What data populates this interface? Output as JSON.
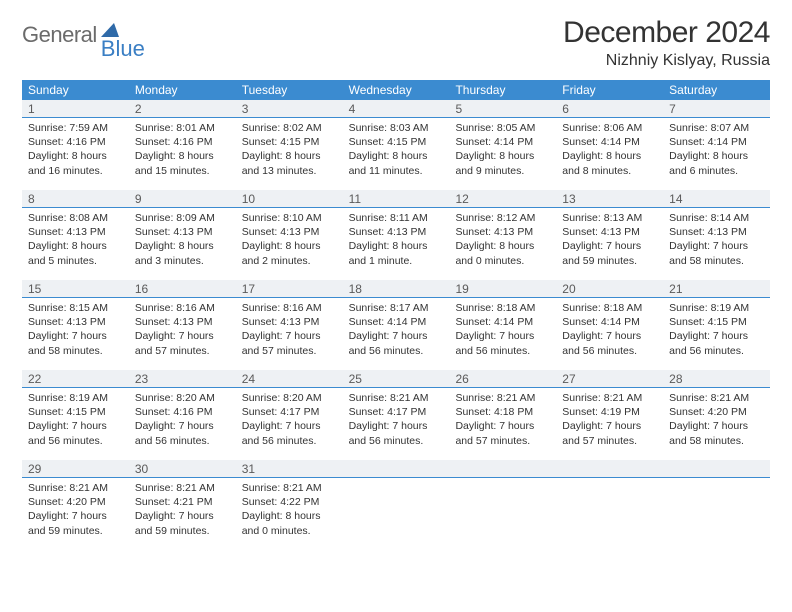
{
  "brand": {
    "part1": "General",
    "part2": "Blue"
  },
  "title": "December 2024",
  "location": "Nizhniy Kislyay, Russia",
  "daynames": [
    "Sunday",
    "Monday",
    "Tuesday",
    "Wednesday",
    "Thursday",
    "Friday",
    "Saturday"
  ],
  "colors": {
    "header_bg": "#3b8bd0",
    "daynum_bg": "#eef1f4",
    "rule": "#3b8bd0",
    "logo_gray": "#6b6b6b",
    "logo_blue": "#3b7fc4"
  },
  "weeks": [
    [
      {
        "n": "1",
        "sr": "Sunrise: 7:59 AM",
        "ss": "Sunset: 4:16 PM",
        "dl": "Daylight: 8 hours and 16 minutes."
      },
      {
        "n": "2",
        "sr": "Sunrise: 8:01 AM",
        "ss": "Sunset: 4:16 PM",
        "dl": "Daylight: 8 hours and 15 minutes."
      },
      {
        "n": "3",
        "sr": "Sunrise: 8:02 AM",
        "ss": "Sunset: 4:15 PM",
        "dl": "Daylight: 8 hours and 13 minutes."
      },
      {
        "n": "4",
        "sr": "Sunrise: 8:03 AM",
        "ss": "Sunset: 4:15 PM",
        "dl": "Daylight: 8 hours and 11 minutes."
      },
      {
        "n": "5",
        "sr": "Sunrise: 8:05 AM",
        "ss": "Sunset: 4:14 PM",
        "dl": "Daylight: 8 hours and 9 minutes."
      },
      {
        "n": "6",
        "sr": "Sunrise: 8:06 AM",
        "ss": "Sunset: 4:14 PM",
        "dl": "Daylight: 8 hours and 8 minutes."
      },
      {
        "n": "7",
        "sr": "Sunrise: 8:07 AM",
        "ss": "Sunset: 4:14 PM",
        "dl": "Daylight: 8 hours and 6 minutes."
      }
    ],
    [
      {
        "n": "8",
        "sr": "Sunrise: 8:08 AM",
        "ss": "Sunset: 4:13 PM",
        "dl": "Daylight: 8 hours and 5 minutes."
      },
      {
        "n": "9",
        "sr": "Sunrise: 8:09 AM",
        "ss": "Sunset: 4:13 PM",
        "dl": "Daylight: 8 hours and 3 minutes."
      },
      {
        "n": "10",
        "sr": "Sunrise: 8:10 AM",
        "ss": "Sunset: 4:13 PM",
        "dl": "Daylight: 8 hours and 2 minutes."
      },
      {
        "n": "11",
        "sr": "Sunrise: 8:11 AM",
        "ss": "Sunset: 4:13 PM",
        "dl": "Daylight: 8 hours and 1 minute."
      },
      {
        "n": "12",
        "sr": "Sunrise: 8:12 AM",
        "ss": "Sunset: 4:13 PM",
        "dl": "Daylight: 8 hours and 0 minutes."
      },
      {
        "n": "13",
        "sr": "Sunrise: 8:13 AM",
        "ss": "Sunset: 4:13 PM",
        "dl": "Daylight: 7 hours and 59 minutes."
      },
      {
        "n": "14",
        "sr": "Sunrise: 8:14 AM",
        "ss": "Sunset: 4:13 PM",
        "dl": "Daylight: 7 hours and 58 minutes."
      }
    ],
    [
      {
        "n": "15",
        "sr": "Sunrise: 8:15 AM",
        "ss": "Sunset: 4:13 PM",
        "dl": "Daylight: 7 hours and 58 minutes."
      },
      {
        "n": "16",
        "sr": "Sunrise: 8:16 AM",
        "ss": "Sunset: 4:13 PM",
        "dl": "Daylight: 7 hours and 57 minutes."
      },
      {
        "n": "17",
        "sr": "Sunrise: 8:16 AM",
        "ss": "Sunset: 4:13 PM",
        "dl": "Daylight: 7 hours and 57 minutes."
      },
      {
        "n": "18",
        "sr": "Sunrise: 8:17 AM",
        "ss": "Sunset: 4:14 PM",
        "dl": "Daylight: 7 hours and 56 minutes."
      },
      {
        "n": "19",
        "sr": "Sunrise: 8:18 AM",
        "ss": "Sunset: 4:14 PM",
        "dl": "Daylight: 7 hours and 56 minutes."
      },
      {
        "n": "20",
        "sr": "Sunrise: 8:18 AM",
        "ss": "Sunset: 4:14 PM",
        "dl": "Daylight: 7 hours and 56 minutes."
      },
      {
        "n": "21",
        "sr": "Sunrise: 8:19 AM",
        "ss": "Sunset: 4:15 PM",
        "dl": "Daylight: 7 hours and 56 minutes."
      }
    ],
    [
      {
        "n": "22",
        "sr": "Sunrise: 8:19 AM",
        "ss": "Sunset: 4:15 PM",
        "dl": "Daylight: 7 hours and 56 minutes."
      },
      {
        "n": "23",
        "sr": "Sunrise: 8:20 AM",
        "ss": "Sunset: 4:16 PM",
        "dl": "Daylight: 7 hours and 56 minutes."
      },
      {
        "n": "24",
        "sr": "Sunrise: 8:20 AM",
        "ss": "Sunset: 4:17 PM",
        "dl": "Daylight: 7 hours and 56 minutes."
      },
      {
        "n": "25",
        "sr": "Sunrise: 8:21 AM",
        "ss": "Sunset: 4:17 PM",
        "dl": "Daylight: 7 hours and 56 minutes."
      },
      {
        "n": "26",
        "sr": "Sunrise: 8:21 AM",
        "ss": "Sunset: 4:18 PM",
        "dl": "Daylight: 7 hours and 57 minutes."
      },
      {
        "n": "27",
        "sr": "Sunrise: 8:21 AM",
        "ss": "Sunset: 4:19 PM",
        "dl": "Daylight: 7 hours and 57 minutes."
      },
      {
        "n": "28",
        "sr": "Sunrise: 8:21 AM",
        "ss": "Sunset: 4:20 PM",
        "dl": "Daylight: 7 hours and 58 minutes."
      }
    ],
    [
      {
        "n": "29",
        "sr": "Sunrise: 8:21 AM",
        "ss": "Sunset: 4:20 PM",
        "dl": "Daylight: 7 hours and 59 minutes."
      },
      {
        "n": "30",
        "sr": "Sunrise: 8:21 AM",
        "ss": "Sunset: 4:21 PM",
        "dl": "Daylight: 7 hours and 59 minutes."
      },
      {
        "n": "31",
        "sr": "Sunrise: 8:21 AM",
        "ss": "Sunset: 4:22 PM",
        "dl": "Daylight: 8 hours and 0 minutes."
      },
      null,
      null,
      null,
      null
    ]
  ]
}
